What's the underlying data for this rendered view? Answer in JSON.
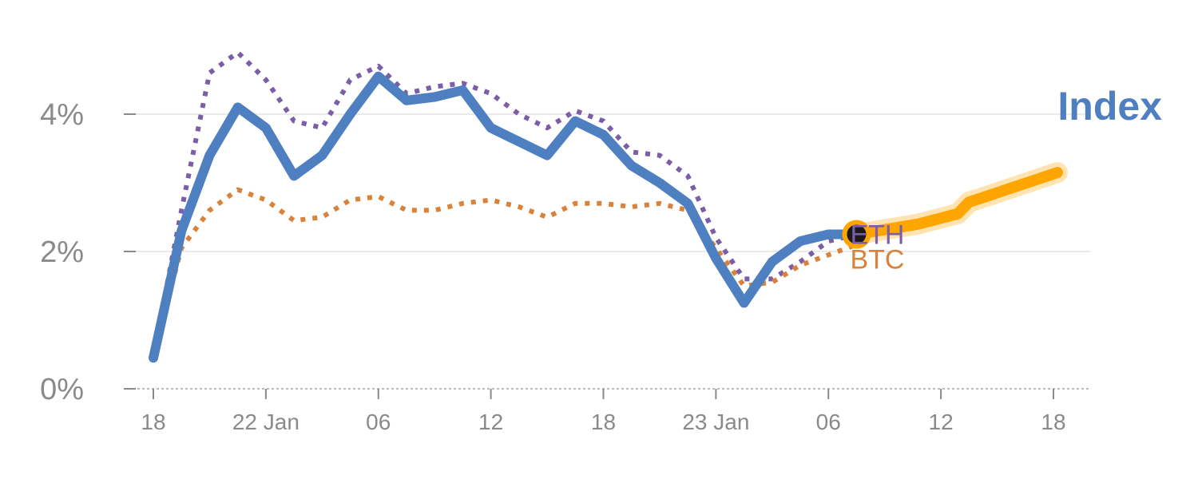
{
  "chart_data": {
    "type": "line",
    "title": "",
    "xlabel": "",
    "ylabel": "",
    "y_unit": "%",
    "ylim": [
      0,
      5
    ],
    "yticks": [
      0,
      2,
      4
    ],
    "ytick_labels": [
      "0%",
      "2%",
      "4%"
    ],
    "x_tick_labels": [
      "18",
      "22 Jan",
      "06",
      "12",
      "18",
      "23 Jan",
      "06",
      "12",
      "18"
    ],
    "grid": true,
    "series": [
      {
        "name": "ETH",
        "style": "dotted",
        "color": "#7b5ea7",
        "values": [
          0.5,
          2.6,
          4.6,
          4.9,
          4.5,
          3.9,
          3.8,
          4.5,
          4.7,
          4.3,
          4.4,
          4.45,
          4.3,
          4.0,
          3.8,
          4.05,
          3.9,
          3.45,
          3.4,
          3.1,
          2.2,
          1.6,
          1.6,
          1.85,
          2.15,
          2.25
        ]
      },
      {
        "name": "BTC",
        "style": "dotted",
        "color": "#d9823b",
        "values": [
          0.5,
          2.05,
          2.6,
          2.9,
          2.75,
          2.45,
          2.5,
          2.75,
          2.8,
          2.6,
          2.6,
          2.7,
          2.75,
          2.65,
          2.5,
          2.7,
          2.7,
          2.65,
          2.7,
          2.6,
          2.05,
          1.5,
          1.55,
          1.8,
          1.95,
          2.1
        ]
      },
      {
        "name": "Index",
        "style": "solid",
        "color": "#4e7fc0",
        "values": [
          0.45,
          2.3,
          3.4,
          4.1,
          3.8,
          3.1,
          3.4,
          4.0,
          4.55,
          4.2,
          4.25,
          4.35,
          3.8,
          3.6,
          3.4,
          3.9,
          3.7,
          3.25,
          3.0,
          2.7,
          1.9,
          1.25,
          1.85,
          2.15,
          2.25,
          2.25
        ]
      },
      {
        "name": "",
        "style": "forecast",
        "color": "#ffa500",
        "values": [
          2.25,
          2.4,
          2.55,
          2.72,
          2.8,
          3.15
        ]
      }
    ]
  }
}
